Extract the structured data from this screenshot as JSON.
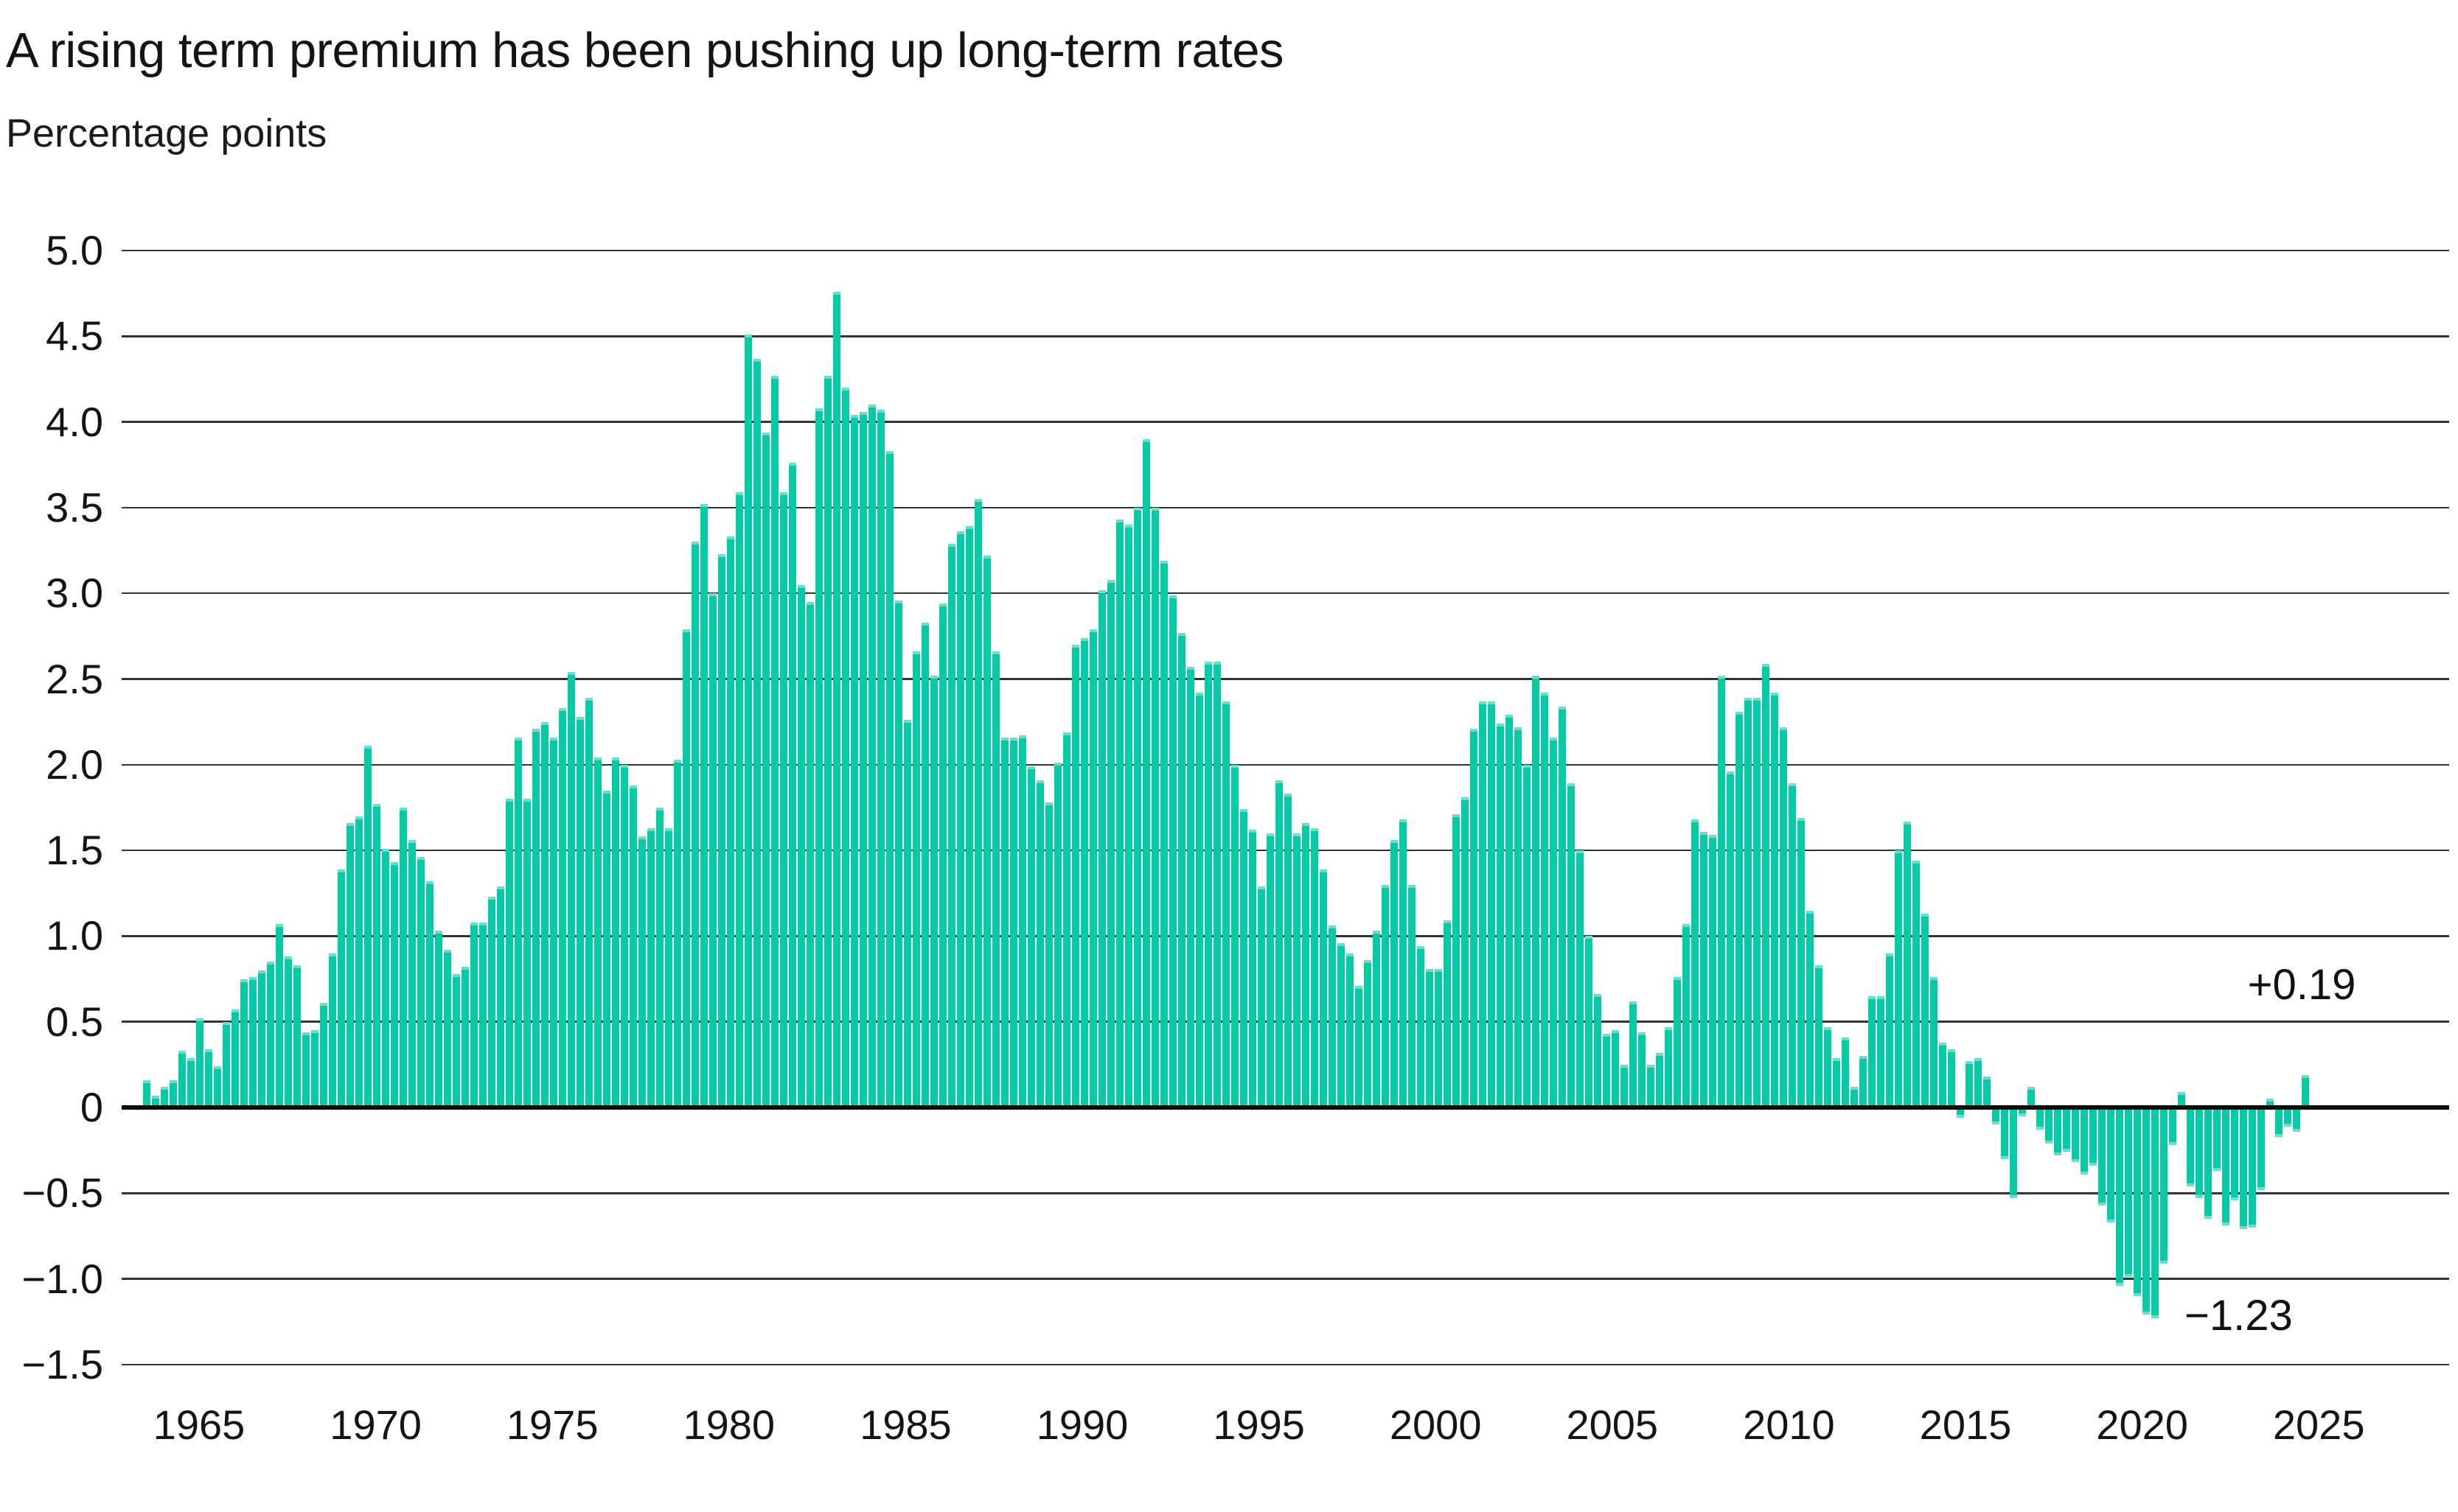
{
  "header": {
    "title": "A rising term premium has been pushing up long-term rates",
    "subtitle": "Percentage points"
  },
  "annotations": {
    "latest": "+0.19",
    "minimum": "−1.23"
  },
  "y_axis": {
    "tick_labels": [
      "5.0",
      "4.5",
      "4.0",
      "3.5",
      "3.0",
      "2.5",
      "2.0",
      "1.5",
      "1.0",
      "0.5",
      "0",
      "−0.5",
      "−1.0",
      "−1.5"
    ],
    "tick_values": [
      5.0,
      4.5,
      4.0,
      3.5,
      3.0,
      2.5,
      2.0,
      1.5,
      1.0,
      0.5,
      0,
      -0.5,
      -1.0,
      -1.5
    ]
  },
  "x_axis": {
    "tick_labels": [
      "1965",
      "1970",
      "1975",
      "1980",
      "1985",
      "1990",
      "1995",
      "2000",
      "2005",
      "2010",
      "2015",
      "2020",
      "2025"
    ],
    "tick_years": [
      1965,
      1970,
      1975,
      1980,
      1985,
      1990,
      1995,
      2000,
      2005,
      2010,
      2015,
      2020,
      2025
    ]
  },
  "chart_data": {
    "type": "bar",
    "title": "A rising term premium has been pushing up long-term rates",
    "ylabel": "Percentage points",
    "xlabel": "",
    "frequency": "quarterly",
    "start_period": "1963Q3",
    "end_period": "2024Q3",
    "ylim": [
      -1.5,
      5.0
    ],
    "grid": "horizontal",
    "legend": "none",
    "bar_color": "#02cba5",
    "annotations": [
      {
        "label": "+0.19",
        "period": "2024Q3",
        "value": 0.19
      },
      {
        "label": "−1.23",
        "period": "2020Q2",
        "value": -1.23
      }
    ],
    "values": [
      0.16,
      0.07,
      0.12,
      0.16,
      0.33,
      0.29,
      0.52,
      0.34,
      0.24,
      0.5,
      0.57,
      0.75,
      0.76,
      0.8,
      0.85,
      1.07,
      0.88,
      0.83,
      0.44,
      0.45,
      0.61,
      0.9,
      1.39,
      1.66,
      1.7,
      2.11,
      1.77,
      1.51,
      1.43,
      1.75,
      1.56,
      1.46,
      1.32,
      1.03,
      0.92,
      0.78,
      0.82,
      1.08,
      1.08,
      1.23,
      1.29,
      1.8,
      2.16,
      1.8,
      2.21,
      2.25,
      2.16,
      2.33,
      2.54,
      2.28,
      2.39,
      2.04,
      1.85,
      2.04,
      2.0,
      1.88,
      1.58,
      1.63,
      1.75,
      1.63,
      2.03,
      2.79,
      3.3,
      3.52,
      3.0,
      3.23,
      3.33,
      3.59,
      4.51,
      4.37,
      3.94,
      4.27,
      3.59,
      3.76,
      3.05,
      2.95,
      4.08,
      4.27,
      4.76,
      4.2,
      4.04,
      4.06,
      4.1,
      4.07,
      3.83,
      2.96,
      2.26,
      2.66,
      2.83,
      2.52,
      2.94,
      3.29,
      3.36,
      3.39,
      3.55,
      3.22,
      2.66,
      2.16,
      2.16,
      2.17,
      1.99,
      1.91,
      1.78,
      2.01,
      2.19,
      2.7,
      2.74,
      2.79,
      3.02,
      3.08,
      3.43,
      3.4,
      3.5,
      3.9,
      3.5,
      3.19,
      2.99,
      2.77,
      2.57,
      2.42,
      2.6,
      2.6,
      2.37,
      2.0,
      1.74,
      1.62,
      1.29,
      1.6,
      1.91,
      1.83,
      1.6,
      1.66,
      1.63,
      1.39,
      1.06,
      0.96,
      0.9,
      0.71,
      0.86,
      1.03,
      1.3,
      1.56,
      1.68,
      1.3,
      0.94,
      0.81,
      0.81,
      1.09,
      1.71,
      1.81,
      2.21,
      2.37,
      2.37,
      2.24,
      2.29,
      2.22,
      2.0,
      2.52,
      2.42,
      2.16,
      2.34,
      1.89,
      1.5,
      1.0,
      0.66,
      0.43,
      0.45,
      0.25,
      0.62,
      0.44,
      0.25,
      0.32,
      0.47,
      0.76,
      1.07,
      1.68,
      1.61,
      1.59,
      2.52,
      1.96,
      2.31,
      2.39,
      2.39,
      2.59,
      2.42,
      2.22,
      1.89,
      1.69,
      1.15,
      0.83,
      0.47,
      0.29,
      0.41,
      0.12,
      0.3,
      0.65,
      0.65,
      0.9,
      1.5,
      1.67,
      1.44,
      1.13,
      0.76,
      0.38,
      0.34,
      -0.06,
      0.27,
      0.29,
      0.18,
      -0.1,
      -0.3,
      -0.53,
      -0.05,
      0.12,
      -0.13,
      -0.21,
      -0.28,
      -0.26,
      -0.32,
      -0.39,
      -0.34,
      -0.57,
      -0.67,
      -1.04,
      -0.99,
      -1.1,
      -1.21,
      -1.23,
      -0.91,
      -0.22,
      0.09,
      -0.46,
      -0.53,
      -0.65,
      -0.37,
      -0.69,
      -0.54,
      -0.71,
      -0.7,
      -0.48,
      0.05,
      -0.17,
      -0.11,
      -0.14,
      0.19
    ]
  }
}
